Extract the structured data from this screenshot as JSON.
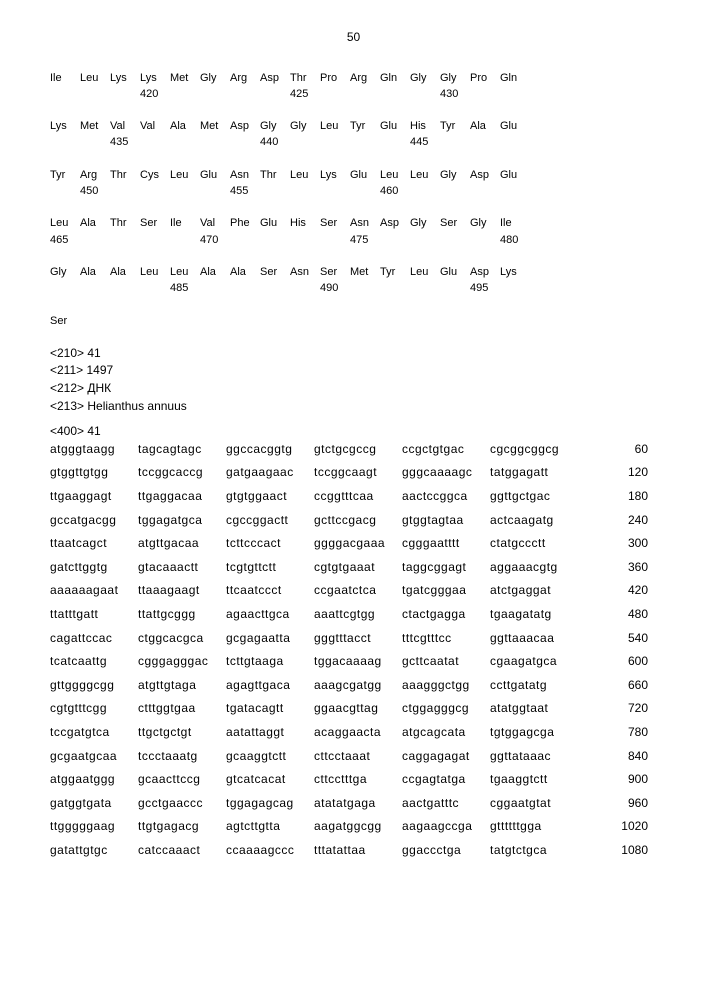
{
  "page_number": "50",
  "protein_rows": [
    {
      "aa": [
        "Ile",
        "Leu",
        "Lys",
        "Lys",
        "Met",
        "Gly",
        "Arg",
        "Asp",
        "Thr",
        "Pro",
        "Arg",
        "Gln",
        "Gly",
        "Gly",
        "Pro",
        "Gln"
      ],
      "nums": [
        "",
        "",
        "",
        "420",
        "",
        "",
        "",
        "",
        "425",
        "",
        "",
        "",
        "",
        "430",
        "",
        ""
      ]
    },
    {
      "aa": [
        "Lys",
        "Met",
        "Val",
        "Val",
        "Ala",
        "Met",
        "Asp",
        "Gly",
        "Gly",
        "Leu",
        "Tyr",
        "Glu",
        "His",
        "Tyr",
        "Ala",
        "Glu"
      ],
      "nums": [
        "",
        "",
        "435",
        "",
        "",
        "",
        "",
        "440",
        "",
        "",
        "",
        "",
        "445",
        "",
        "",
        ""
      ]
    },
    {
      "aa": [
        "Tyr",
        "Arg",
        "Thr",
        "Cys",
        "Leu",
        "Glu",
        "Asn",
        "Thr",
        "Leu",
        "Lys",
        "Glu",
        "Leu",
        "Leu",
        "Gly",
        "Asp",
        "Glu"
      ],
      "nums": [
        "",
        "450",
        "",
        "",
        "",
        "",
        "455",
        "",
        "",
        "",
        "",
        "460",
        "",
        "",
        "",
        ""
      ]
    },
    {
      "aa": [
        "Leu",
        "Ala",
        "Thr",
        "Ser",
        "Ile",
        "Val",
        "Phe",
        "Glu",
        "His",
        "Ser",
        "Asn",
        "Asp",
        "Gly",
        "Ser",
        "Gly",
        "Ile"
      ],
      "nums": [
        "465",
        "",
        "",
        "",
        "",
        "470",
        "",
        "",
        "",
        "",
        "475",
        "",
        "",
        "",
        "",
        "480"
      ]
    },
    {
      "aa": [
        "Gly",
        "Ala",
        "Ala",
        "Leu",
        "Leu",
        "Ala",
        "Ala",
        "Ser",
        "Asn",
        "Ser",
        "Met",
        "Tyr",
        "Leu",
        "Glu",
        "Asp",
        "Lys"
      ],
      "nums": [
        "",
        "",
        "",
        "",
        "485",
        "",
        "",
        "",
        "",
        "490",
        "",
        "",
        "",
        "",
        "495",
        ""
      ]
    }
  ],
  "standalone_aa": "Ser",
  "headers": {
    "h210": "<210>  41",
    "h211": "<211>  1497",
    "h212": "<212>  ДНК",
    "h213": "<213>  Helianthus annuus",
    "h400": "<400>  41"
  },
  "dna_rows": [
    {
      "segs": [
        "atgggtaagg",
        "tagcagtagc",
        "ggccacggtg",
        "gtctgcgccg",
        "ccgctgtgac",
        "cgcggcggcg"
      ],
      "num": "60"
    },
    {
      "segs": [
        "gtggttgtgg",
        "tccggcaccg",
        "gatgaagaac",
        "tccggcaagt",
        "gggcaaaagc",
        "tatggagatt"
      ],
      "num": "120"
    },
    {
      "segs": [
        "ttgaaggagt",
        "ttgaggacaa",
        "gtgtggaact",
        "ccggtttcaa",
        "aactccggca",
        "ggttgctgac"
      ],
      "num": "180"
    },
    {
      "segs": [
        "gccatgacgg",
        "tggagatgca",
        "cgccggactt",
        "gcttccgacg",
        "gtggtagtaa",
        "actcaagatg"
      ],
      "num": "240"
    },
    {
      "segs": [
        "ttaatcagct",
        "atgttgacaa",
        "tcttcccact",
        "ggggacgaaa",
        "cgggaatttt",
        "ctatgccctt"
      ],
      "num": "300"
    },
    {
      "segs": [
        "gatcttggtg",
        "gtacaaactt",
        "tcgtgttctt",
        "cgtgtgaaat",
        "taggcggagt",
        "aggaaacgtg"
      ],
      "num": "360"
    },
    {
      "segs": [
        "aaaaaagaat",
        "ttaaagaagt",
        "ttcaatccct",
        "ccgaatctca",
        "tgatcgggaa",
        "atctgaggat"
      ],
      "num": "420"
    },
    {
      "segs": [
        "ttatttgatt",
        "ttattgcggg",
        "agaacttgca",
        "aaattcgtgg",
        "ctactgagga",
        "tgaagatatg"
      ],
      "num": "480"
    },
    {
      "segs": [
        "cagattccac",
        "ctggcacgca",
        "gcgagaatta",
        "gggtttacct",
        "tttcgtttcc",
        "ggttaaacaa"
      ],
      "num": "540"
    },
    {
      "segs": [
        "tcatcaattg",
        "cgggagggac",
        "tcttgtaaga",
        "tggacaaaag",
        "gcttcaatat",
        "cgaagatgca"
      ],
      "num": "600"
    },
    {
      "segs": [
        "gttggggcgg",
        "atgttgtaga",
        "agagttgaca",
        "aaagcgatgg",
        "aaagggctgg",
        "ccttgatatg"
      ],
      "num": "660"
    },
    {
      "segs": [
        "cgtgtttcgg",
        "ctttggtgaa",
        "tgatacagtt",
        "ggaacgttag",
        "ctggagggcg",
        "atatggtaat"
      ],
      "num": "720"
    },
    {
      "segs": [
        "tccgatgtca",
        "ttgctgctgt",
        "aatattaggt",
        "acaggaacta",
        "atgcagcata",
        "tgtggagcga"
      ],
      "num": "780"
    },
    {
      "segs": [
        "gcgaatgcaa",
        "tccctaaatg",
        "gcaaggtctt",
        "cttcctaaat",
        "caggagagat",
        "ggttataaac"
      ],
      "num": "840"
    },
    {
      "segs": [
        "atggaatggg",
        "gcaacttccg",
        "gtcatcacat",
        "cttcctttga",
        "ccgagtatga",
        "tgaaggtctt"
      ],
      "num": "900"
    },
    {
      "segs": [
        "gatggtgata",
        "gcctgaaccc",
        "tggagagcag",
        "atatatgaga",
        "aactgatttc",
        "cggaatgtat"
      ],
      "num": "960"
    },
    {
      "segs": [
        "ttgggggaag",
        "ttgtgagacg",
        "agtcttgtta",
        "aagatggcgg",
        "aagaagccga",
        "gttttttgga"
      ],
      "num": "1020"
    },
    {
      "segs": [
        "gatattgtgc",
        "catccaaact",
        "ccaaaagccc",
        "tttatattaa",
        "ggaccctga",
        "tatgtctgca"
      ],
      "num": "1080"
    }
  ]
}
